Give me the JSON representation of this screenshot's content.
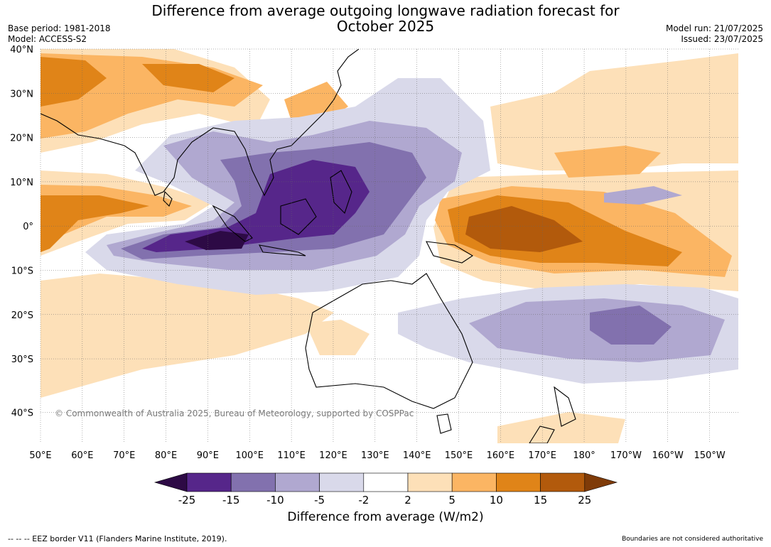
{
  "title_line1": "Difference from average outgoing longwave radiation forecast for",
  "title_line2": "October 2025",
  "base_period": "Base period: 1981-2018",
  "model": "Model: ACCESS-S2",
  "model_run": "Model run: 21/07/2025",
  "issued": "Issued: 23/07/2025",
  "copyright": "© Commonwealth of Australia 2025, Bureau of Meteorology, supported by COSPPac",
  "lon_ticks": [
    "50°E",
    "60°E",
    "70°E",
    "80°E",
    "90°E",
    "100°E",
    "110°E",
    "120°E",
    "130°E",
    "140°E",
    "150°E",
    "160°E",
    "170°E",
    "180°",
    "170°W",
    "160°W",
    "150°W"
  ],
  "lat_ticks": [
    "40°N",
    "30°N",
    "20°N",
    "10°N",
    "0°",
    "10°S",
    "20°S",
    "30°S",
    "40°S"
  ],
  "colorbar": {
    "title": "Difference from average (W/m2)",
    "ticks": [
      "-25",
      "-15",
      "-10",
      "-5",
      "-2",
      "2",
      "5",
      "10",
      "15",
      "25"
    ],
    "colors": {
      "below_-25": "#2d0a45",
      "-25_-15": "#56268a",
      "-15_-10": "#8271ae",
      "-10_-5": "#b0a8d0",
      "-5_-2": "#d9d9ea",
      "-2_2": "#ffffff",
      "2_5": "#fde0b8",
      "5_10": "#fbb563",
      "10_15": "#e08418",
      "15_25": "#b25a0c",
      "above_25": "#7f3b08"
    }
  },
  "footer_left": "--  --  -- EEZ border V11 (Flanders Marine Institute, 2019).",
  "footer_right": "Boundaries are not considered authoritative"
}
